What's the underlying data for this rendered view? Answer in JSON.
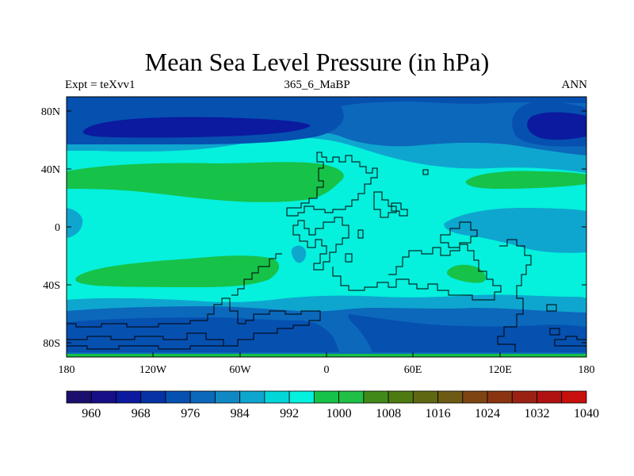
{
  "title": "Mean Sea Level Pressure (in hPa)",
  "subtitle_left": "Expt = teXvv1",
  "subtitle_center": "365_6_MaBP",
  "subtitle_right": "ANN",
  "chart_data": {
    "type": "heatmap",
    "variable": "Mean Sea Level Pressure",
    "units": "hPa",
    "x_ticks": [
      "180",
      "120W",
      "60W",
      "0",
      "60E",
      "120E",
      "180"
    ],
    "y_ticks": [
      "80N",
      "40N",
      "0",
      "40S",
      "80S"
    ],
    "colorbar_levels": [
      960,
      964,
      968,
      972,
      976,
      980,
      984,
      988,
      992,
      996,
      1000,
      1004,
      1008,
      1012,
      1016,
      1020,
      1024,
      1028,
      1032,
      1036,
      1040
    ],
    "colorbar_labels": [
      "960",
      "968",
      "976",
      "984",
      "992",
      "1000",
      "1008",
      "1016",
      "1024",
      "1032",
      "1040"
    ],
    "colorbar_colors": [
      "#1a0f6e",
      "#160f86",
      "#0b1a9e",
      "#0532a4",
      "#0650b0",
      "#0c68bb",
      "#0f88c4",
      "#0ea6cf",
      "#04d6d8",
      "#05f0dd",
      "#16c248",
      "#1fc045",
      "#418a1a",
      "#4e7a12",
      "#5f6811",
      "#6d5a14",
      "#7e4412",
      "#8a3412",
      "#9a2212",
      "#b01212",
      "#c8100e"
    ]
  }
}
